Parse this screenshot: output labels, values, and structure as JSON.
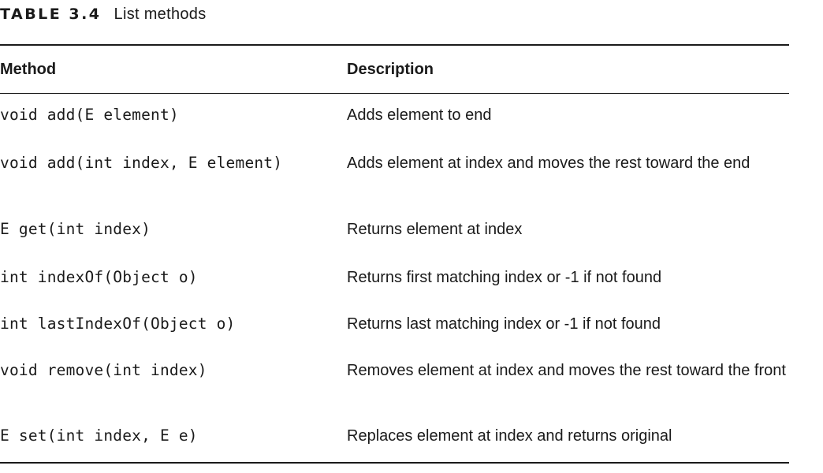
{
  "caption": {
    "label": "TABLE 3.4",
    "title": "List methods"
  },
  "table": {
    "headers": {
      "method": "Method",
      "description": "Description"
    },
    "rows": [
      {
        "method": "void add(E element)",
        "description": "Adds element to end"
      },
      {
        "method": "void add(int index, E element)",
        "description": "Adds element at index and moves the rest toward the end"
      },
      {
        "method": "E get(int index)",
        "description": "Returns element at index"
      },
      {
        "method": "int indexOf(Object o)",
        "description": "Returns first matching index or -1 if not found"
      },
      {
        "method": "int lastIndexOf(Object o)",
        "description": "Returns last matching index or -1 if not found"
      },
      {
        "method": "void remove(int index)",
        "description": "Removes element at index and moves the rest toward the front"
      },
      {
        "method": "E set(int index, E e)",
        "description": "Replaces element at index and returns original"
      }
    ]
  }
}
